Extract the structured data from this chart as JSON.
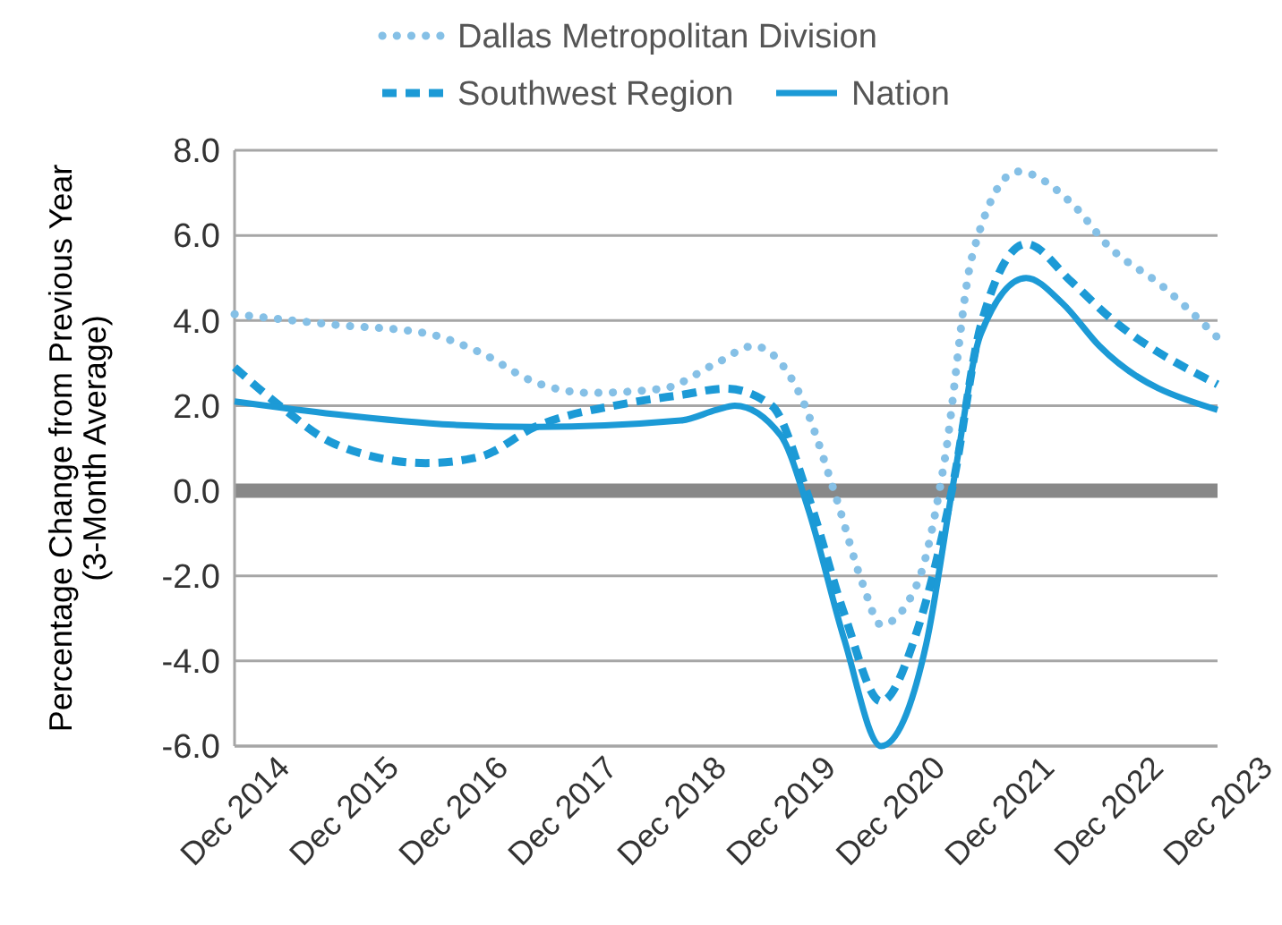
{
  "chart_data": {
    "type": "line",
    "ylabel": "Percentage Change from Previous Year\n(3-Month Average)",
    "xlim": [
      "2014-12",
      "2023-12"
    ],
    "xticks": [
      {
        "value": "2014-12",
        "label": "Dec 2014"
      },
      {
        "value": "2015-12",
        "label": "Dec 2015"
      },
      {
        "value": "2016-12",
        "label": "Dec 2016"
      },
      {
        "value": "2017-12",
        "label": "Dec 2017"
      },
      {
        "value": "2018-12",
        "label": "Dec 2018"
      },
      {
        "value": "2019-12",
        "label": "Dec 2019"
      },
      {
        "value": "2020-12",
        "label": "Dec 2020"
      },
      {
        "value": "2021-12",
        "label": "Dec 2021"
      },
      {
        "value": "2022-12",
        "label": "Dec 2022"
      },
      {
        "value": "2023-12",
        "label": "Dec 2023"
      }
    ],
    "ylim": [
      -6,
      8
    ],
    "yticks": [
      {
        "value": -6,
        "label": "-6.0"
      },
      {
        "value": -4,
        "label": "-4.0"
      },
      {
        "value": -2,
        "label": "-2.0"
      },
      {
        "value": 0,
        "label": "0.0"
      },
      {
        "value": 2,
        "label": "2.0"
      },
      {
        "value": 4,
        "label": "4.0"
      },
      {
        "value": 6,
        "label": "6.0"
      },
      {
        "value": 8,
        "label": "8.0"
      }
    ],
    "grid": "y",
    "legend": "top",
    "ref_lines": [
      {
        "axis": "y",
        "value": 0,
        "color": "#888888"
      }
    ],
    "series": [
      {
        "name": "Dallas Metropolitan Division",
        "color": "#85c0e6",
        "line_style": "dotted",
        "x": [
          "2014-12",
          "2015-11",
          "2016-09",
          "2017-03",
          "2017-09",
          "2018-03",
          "2018-11",
          "2019-05",
          "2019-09",
          "2020-02",
          "2020-06",
          "2020-09",
          "2020-11",
          "2021-03",
          "2021-06",
          "2021-09",
          "2022-02",
          "2022-08",
          "2022-12",
          "2023-06",
          "2023-12"
        ],
        "values": [
          4.15,
          3.9,
          3.7,
          3.25,
          2.55,
          2.3,
          2.4,
          3.0,
          3.4,
          2.3,
          -0.1,
          -2.2,
          -3.15,
          -2.2,
          0.7,
          5.5,
          7.5,
          6.75,
          5.75,
          4.8,
          3.6
        ]
      },
      {
        "name": "Southwest Region",
        "color": "#1c9ad6",
        "line_style": "dashed",
        "x": [
          "2014-12",
          "2015-05",
          "2015-11",
          "2016-09",
          "2017-03",
          "2017-09",
          "2018-07",
          "2019-01",
          "2019-06",
          "2019-11",
          "2020-03",
          "2020-07",
          "2020-11",
          "2021-03",
          "2021-07",
          "2021-10",
          "2022-03",
          "2022-08",
          "2022-12",
          "2023-12"
        ],
        "values": [
          2.9,
          2.0,
          1.1,
          0.65,
          0.8,
          1.5,
          2.05,
          2.25,
          2.4,
          2.0,
          -0.1,
          -2.9,
          -4.95,
          -3.3,
          0.2,
          3.9,
          5.8,
          4.9,
          4.1,
          2.5
        ]
      },
      {
        "name": "Nation",
        "color": "#1c9ad6",
        "line_style": "solid",
        "x": [
          "2014-12",
          "2015-11",
          "2016-12",
          "2017-09",
          "2019-01",
          "2019-05",
          "2019-07",
          "2019-12",
          "2020-03",
          "2020-07",
          "2020-11",
          "2021-04",
          "2021-07",
          "2021-10",
          "2022-03",
          "2022-07",
          "2022-11",
          "2023-12"
        ],
        "values": [
          2.1,
          1.8,
          1.55,
          1.5,
          1.65,
          1.9,
          2.0,
          1.3,
          -0.4,
          -3.5,
          -6.0,
          -3.6,
          0.2,
          3.7,
          5.0,
          4.4,
          3.4,
          1.9
        ]
      }
    ]
  }
}
